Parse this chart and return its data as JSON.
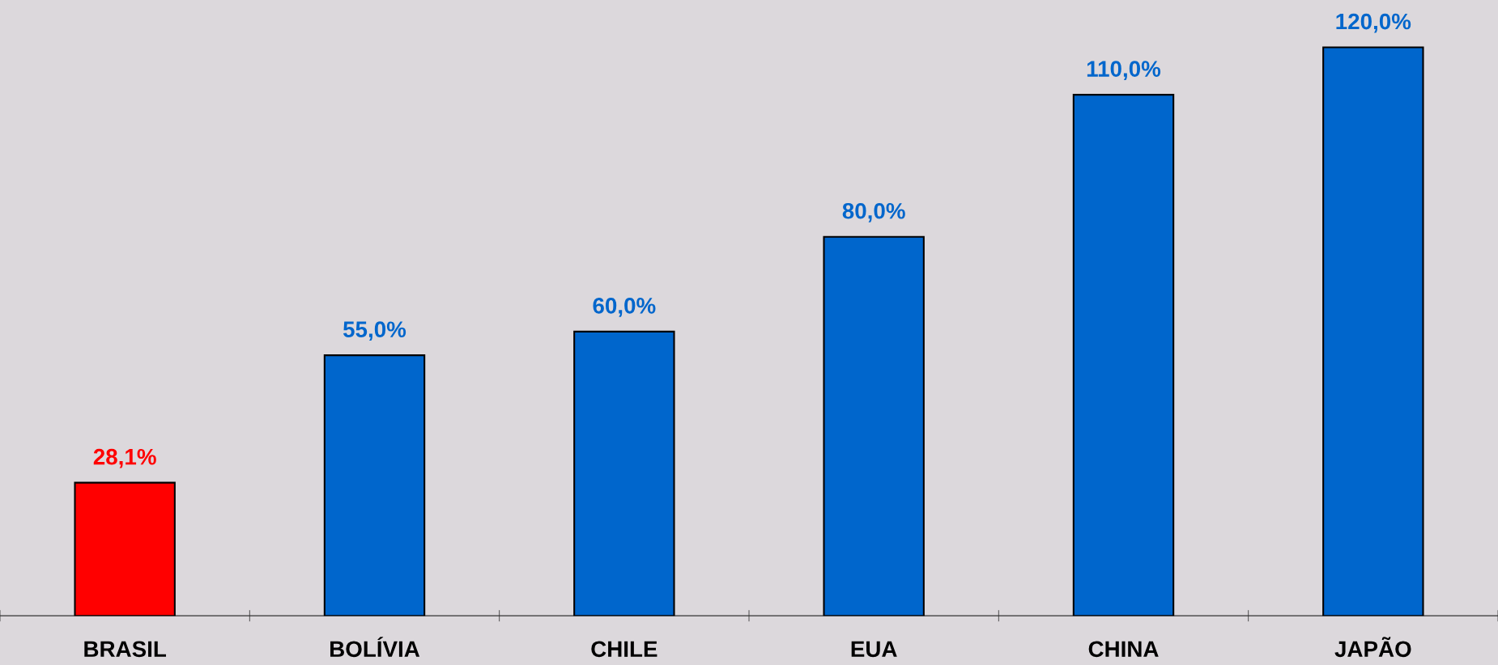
{
  "chart_data": {
    "type": "bar",
    "categories": [
      "BRASIL",
      "BOLÍVIA",
      "CHILE",
      "EUA",
      "CHINA",
      "JAPÃO"
    ],
    "values": [
      28.1,
      55.0,
      60.0,
      80.0,
      110.0,
      120.0
    ],
    "colors": [
      "#ff0000",
      "#0066cc",
      "#0066cc",
      "#0066cc",
      "#0066cc",
      "#0066cc"
    ],
    "value_labels": [
      "28,1%",
      "55,0%",
      "60,0%",
      "80,0%",
      "110,0%",
      "120,0%"
    ],
    "ylim": [
      0,
      130
    ],
    "tick_labels": "x",
    "grid": false,
    "legend": false
  }
}
